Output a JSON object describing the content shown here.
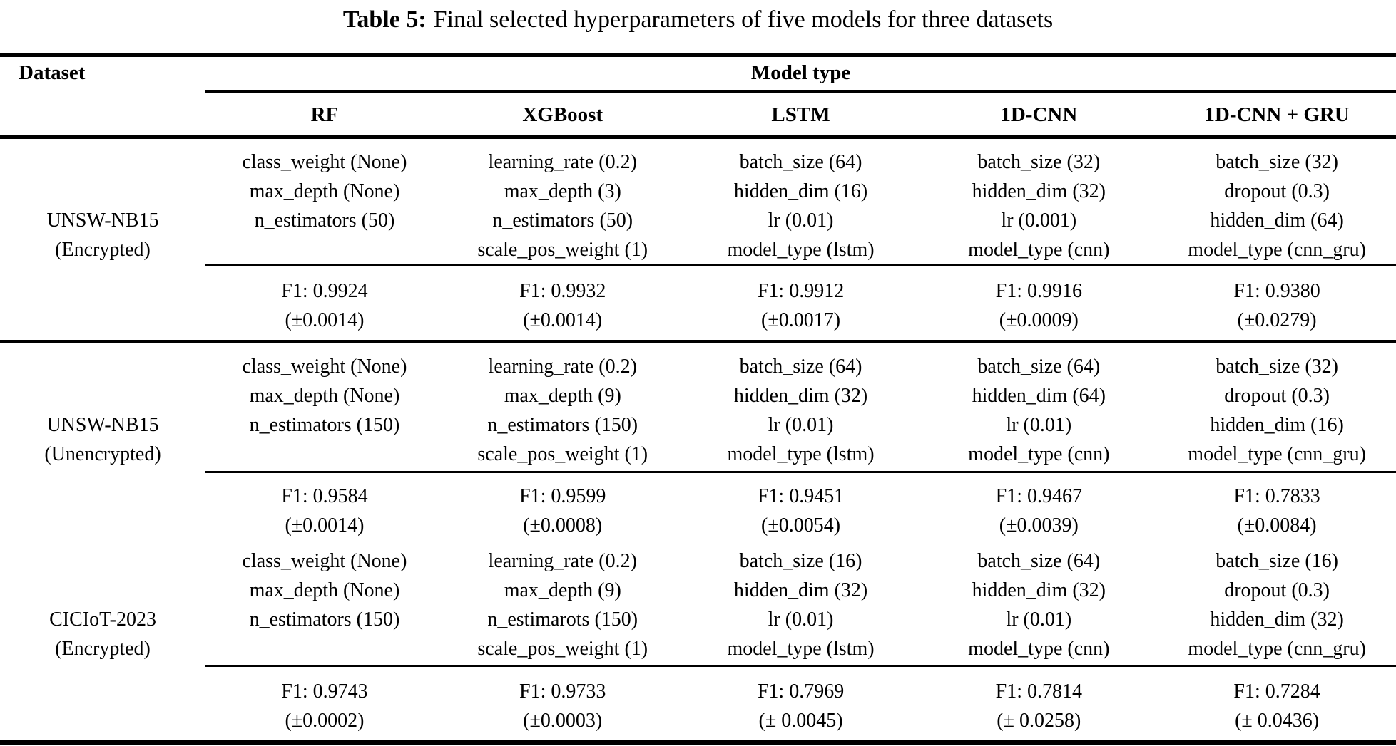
{
  "title": {
    "label": "Table 5:",
    "text": "Final selected hyperparameters of five models for three datasets"
  },
  "table": {
    "dataset_header": "Dataset",
    "group_header": "Model type",
    "columns": [
      "RF",
      "XGBoost",
      "LSTM",
      "1D-CNN",
      "1D-CNN + GRU"
    ],
    "sections": [
      {
        "dataset": [
          "UNSW-NB15",
          "(Encrypted)"
        ],
        "params": [
          [
            "class_weight (None)",
            "learning_rate (0.2)",
            "batch_size (64)",
            "batch_size (32)",
            "batch_size (32)"
          ],
          [
            "max_depth (None)",
            "max_depth (3)",
            "hidden_dim (16)",
            "hidden_dim (32)",
            "dropout (0.3)"
          ],
          [
            "n_estimators (50)",
            "n_estimators (50)",
            "lr (0.01)",
            "lr (0.001)",
            "hidden_dim (64)"
          ],
          [
            "",
            "scale_pos_weight (1)",
            "model_type (lstm)",
            "model_type (cnn)",
            "model_type (cnn_gru)"
          ]
        ],
        "f1": [
          "F1: 0.9924",
          "F1: 0.9932",
          "F1: 0.9912",
          "F1: 0.9916",
          "F1: 0.9380"
        ],
        "std": [
          "(±0.0014)",
          "(±0.0014)",
          "(±0.0017)",
          "(±0.0009)",
          "(±0.0279)"
        ]
      },
      {
        "dataset": [
          "UNSW-NB15",
          "(Unencrypted)"
        ],
        "params": [
          [
            "class_weight (None)",
            "learning_rate (0.2)",
            "batch_size (64)",
            "batch_size (64)",
            "batch_size (32)"
          ],
          [
            "max_depth (None)",
            "max_depth (9)",
            "hidden_dim (32)",
            "hidden_dim (64)",
            "dropout (0.3)"
          ],
          [
            "n_estimators (150)",
            "n_estimators (150)",
            "lr (0.01)",
            "lr (0.01)",
            "hidden_dim (16)"
          ],
          [
            "",
            "scale_pos_weight (1)",
            "model_type (lstm)",
            "model_type (cnn)",
            "model_type (cnn_gru)"
          ]
        ],
        "f1": [
          "F1: 0.9584",
          "F1: 0.9599",
          "F1: 0.9451",
          "F1: 0.9467",
          "F1: 0.7833"
        ],
        "std": [
          "(±0.0014)",
          "(±0.0008)",
          "(±0.0054)",
          "(±0.0039)",
          "(±0.0084)"
        ]
      },
      {
        "dataset": [
          "CICIoT-2023",
          "(Encrypted)"
        ],
        "params": [
          [
            "class_weight (None)",
            "learning_rate (0.2)",
            "batch_size (16)",
            "batch_size (64)",
            "batch_size (16)"
          ],
          [
            "max_depth (None)",
            "max_depth (9)",
            "hidden_dim (32)",
            "hidden_dim (32)",
            "dropout (0.3)"
          ],
          [
            "n_estimators (150)",
            "n_estimarots (150)",
            "lr (0.01)",
            "lr (0.01)",
            "hidden_dim (32)"
          ],
          [
            "",
            "scale_pos_weight (1)",
            "model_type (lstm)",
            "model_type (cnn)",
            "model_type (cnn_gru)"
          ]
        ],
        "f1": [
          "F1: 0.9743",
          "F1: 0.9733",
          "F1: 0.7969",
          "F1: 0.7814",
          "F1: 0.7284"
        ],
        "std": [
          "(±0.0002)",
          "(±0.0003)",
          "(± 0.0045)",
          "(± 0.0258)",
          "(± 0.0436)"
        ]
      }
    ]
  }
}
